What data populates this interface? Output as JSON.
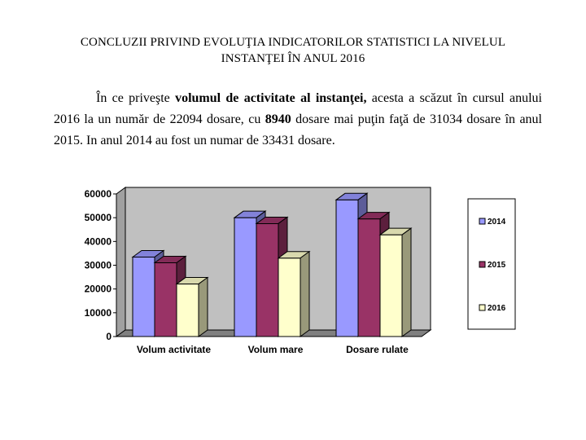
{
  "title": {
    "line1": "CONCLUZII PRIVIND EVOLUŢIA INDICATORILOR STATISTICI LA NIVELUL",
    "line2": "INSTANŢEI ÎN ANUL 2016"
  },
  "paragraph": {
    "p1": "În ce priveşte ",
    "bold1": "volumul de activitate al instanţei,",
    "p2": " acesta a scăzut în cursul anului 2016 la un număr de 22094 dosare, cu ",
    "bold2": "8940",
    "p3": " dosare mai puţin faţă de 31034 dosare în anul 2015. In anul 2014 au fost un numar de 33431 dosare."
  },
  "chart_data": {
    "type": "bar",
    "categories": [
      "Volum activitate",
      "Volum mare",
      "Dosare rulate"
    ],
    "series": [
      {
        "name": "2014",
        "values": [
          33431,
          50000,
          57500
        ],
        "color": "#9999ff"
      },
      {
        "name": "2015",
        "values": [
          31034,
          47500,
          49500
        ],
        "color": "#993366"
      },
      {
        "name": "2016",
        "values": [
          22094,
          33000,
          42800
        ],
        "color": "#ffffcc"
      }
    ],
    "ylim": [
      0,
      60000
    ],
    "yticks": [
      "60000",
      "50000",
      "40000",
      "30000",
      "20000",
      "10000",
      "0"
    ],
    "legend": "right",
    "grid": false
  }
}
